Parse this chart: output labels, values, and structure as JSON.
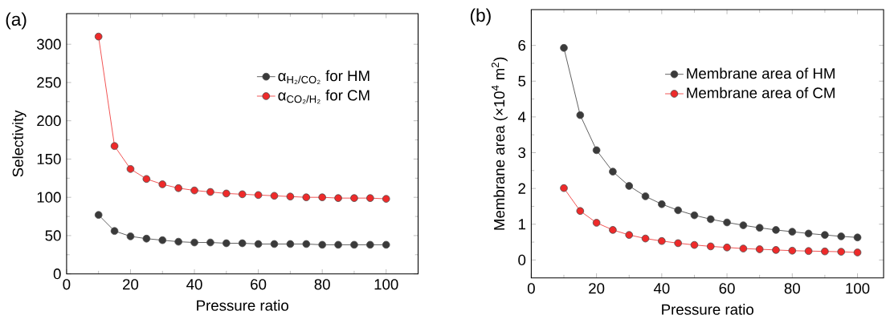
{
  "chart_data": [
    {
      "type": "line",
      "title": "(a)",
      "xlabel": "Pressure ratio",
      "ylabel": "Selectivity",
      "x": [
        10,
        15,
        20,
        25,
        30,
        35,
        40,
        45,
        50,
        55,
        60,
        65,
        70,
        75,
        80,
        85,
        90,
        95,
        100
      ],
      "series": [
        {
          "name": "α$_{H₂/CO₂}$ for HM",
          "color": "#3a3a3a",
          "values": [
            77,
            56,
            49,
            46,
            44,
            42,
            41,
            41,
            40,
            40,
            39,
            39,
            39,
            39,
            38,
            38,
            38,
            38,
            38
          ]
        },
        {
          "name": "α$_{CO₂/H₂}$ for CM",
          "color": "#ee2a2a",
          "values": [
            310,
            167,
            137,
            124,
            117,
            112,
            109,
            107,
            105,
            104,
            103,
            102,
            101,
            100,
            100,
            99,
            99,
            99,
            98
          ]
        }
      ],
      "xlim": [
        0,
        110
      ],
      "xticks": [
        0,
        20,
        40,
        60,
        80,
        100
      ],
      "ylim": [
        0,
        340
      ],
      "yticks": [
        0,
        50,
        100,
        150,
        200,
        250,
        300
      ],
      "legend": "top right",
      "marker": "circle",
      "line_style": "solid"
    },
    {
      "type": "line",
      "title": "(b)",
      "xlabel": "Pressure ratio",
      "ylabel": "Membrane area (×10$^{4}$ m$^{2}$)",
      "x": [
        10,
        15,
        20,
        25,
        30,
        35,
        40,
        45,
        50,
        55,
        60,
        65,
        70,
        75,
        80,
        85,
        90,
        95,
        100
      ],
      "series": [
        {
          "name": "Membrane area of HM",
          "color": "#3a3a3a",
          "values": [
            5.93,
            4.05,
            3.07,
            2.47,
            2.07,
            1.78,
            1.56,
            1.39,
            1.25,
            1.14,
            1.05,
            0.97,
            0.9,
            0.84,
            0.79,
            0.74,
            0.7,
            0.66,
            0.63
          ]
        },
        {
          "name": "Membrane area of CM",
          "color": "#ee2a2a",
          "values": [
            2.01,
            1.37,
            1.04,
            0.84,
            0.7,
            0.6,
            0.53,
            0.47,
            0.42,
            0.38,
            0.35,
            0.32,
            0.3,
            0.28,
            0.26,
            0.25,
            0.24,
            0.23,
            0.21
          ]
        }
      ],
      "xlim": [
        0,
        108
      ],
      "xticks": [
        0,
        20,
        40,
        60,
        80,
        100
      ],
      "ylim": [
        -0.5,
        7
      ],
      "yticks": [
        0,
        1,
        2,
        3,
        4,
        5,
        6
      ],
      "legend": "top right",
      "marker": "circle",
      "line_style": "solid"
    }
  ]
}
